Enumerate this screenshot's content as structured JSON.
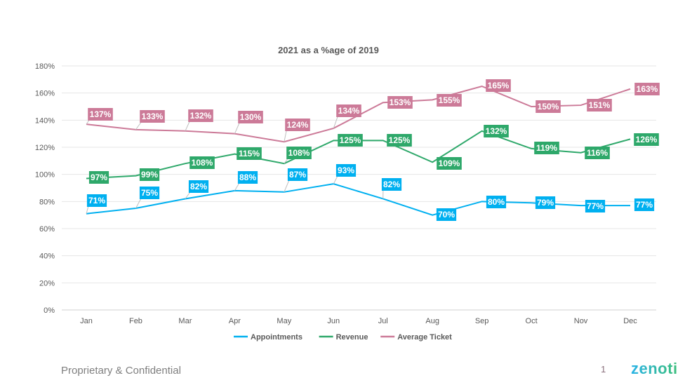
{
  "chart_data": {
    "type": "line",
    "title": "2021 as a %age of 2019",
    "categories": [
      "Jan",
      "Feb",
      "Mar",
      "Apr",
      "May",
      "Jun",
      "Jul",
      "Aug",
      "Sep",
      "Oct",
      "Nov",
      "Dec"
    ],
    "ylim": [
      0,
      180
    ],
    "yticks": [
      0,
      20,
      40,
      60,
      80,
      100,
      120,
      140,
      160,
      180
    ],
    "ytick_suffix": "%",
    "grid": true,
    "legend": "bottom",
    "series": [
      {
        "name": "Appointments",
        "color": "#00b0f0",
        "values": [
          71,
          75,
          82,
          88,
          87,
          93,
          82,
          70,
          80,
          79,
          77,
          77
        ]
      },
      {
        "name": "Revenue",
        "color": "#2ea86a",
        "values": [
          97,
          99,
          108,
          115,
          108,
          125,
          125,
          109,
          132,
          119,
          116,
          126
        ]
      },
      {
        "name": "Average Ticket",
        "color": "#cc7a98",
        "values": [
          137,
          133,
          132,
          130,
          124,
          134,
          153,
          155,
          165,
          150,
          151,
          163
        ]
      }
    ]
  },
  "footer": {
    "text": "Proprietary & Confidential",
    "page": "1",
    "logo": "zenoti"
  }
}
